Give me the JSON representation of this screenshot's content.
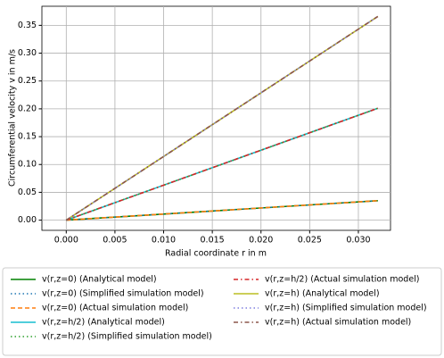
{
  "chart_data": {
    "type": "line",
    "xlabel": "Radial coordinate r in m",
    "ylabel": "Circumferential velocity v in m/s",
    "xlim": [
      -0.0025,
      0.0333
    ],
    "ylim": [
      -0.0183,
      0.3843
    ],
    "xticks": [
      {
        "value": 0,
        "label": "0.000"
      },
      {
        "value": 0.005,
        "label": "0.005"
      },
      {
        "value": 0.01,
        "label": "0.010"
      },
      {
        "value": 0.015,
        "label": "0.015"
      },
      {
        "value": 0.02,
        "label": "0.020"
      },
      {
        "value": 0.025,
        "label": "0.025"
      },
      {
        "value": 0.03,
        "label": "0.030"
      }
    ],
    "yticks": [
      {
        "value": 0,
        "label": "0.00"
      },
      {
        "value": 0.05,
        "label": "0.05"
      },
      {
        "value": 0.1,
        "label": "0.10"
      },
      {
        "value": 0.15,
        "label": "0.15"
      },
      {
        "value": 0.2,
        "label": "0.20"
      },
      {
        "value": 0.25,
        "label": "0.25"
      },
      {
        "value": 0.3,
        "label": "0.30"
      },
      {
        "value": 0.35,
        "label": "0.35"
      }
    ],
    "grid": true,
    "legend_position": "bottom",
    "x": [
      0,
      0.032
    ],
    "series": [
      {
        "name": "v(r,z=0) (Analytical model)",
        "color": "#008000",
        "style": "solid",
        "values": [
          0,
          0.035
        ]
      },
      {
        "name": "v(r,z=0) (Simplified simulation model)",
        "color": "#1f77b4",
        "style": "dotted",
        "values": [
          0,
          0.035
        ]
      },
      {
        "name": "v(r,z=0) (Actual simulation model)",
        "color": "#ff7f0e",
        "style": "dashed",
        "values": [
          0,
          0.035
        ]
      },
      {
        "name": "v(r,z=h/2) (Analytical model)",
        "color": "#17becf",
        "style": "solid",
        "values": [
          0,
          0.201
        ]
      },
      {
        "name": "v(r,z=h/2) (Simplified simulation model)",
        "color": "#2ca02c",
        "style": "dotted",
        "values": [
          0,
          0.201
        ]
      },
      {
        "name": "v(r,z=h/2) (Actual simulation model)",
        "color": "#d62728",
        "style": "dashdot",
        "values": [
          0,
          0.201
        ]
      },
      {
        "name": "v(r,z=h) (Analytical model)",
        "color": "#bcbd22",
        "style": "solid",
        "values": [
          0,
          0.366
        ]
      },
      {
        "name": "v(r,z=h) (Simplified simulation model)",
        "color": "#7f7fdf",
        "style": "dotted",
        "values": [
          0,
          0.366
        ]
      },
      {
        "name": "v(r,z=h) (Actual simulation model)",
        "color": "#8c564b",
        "style": "dashdot",
        "values": [
          0,
          0.366
        ]
      }
    ]
  }
}
